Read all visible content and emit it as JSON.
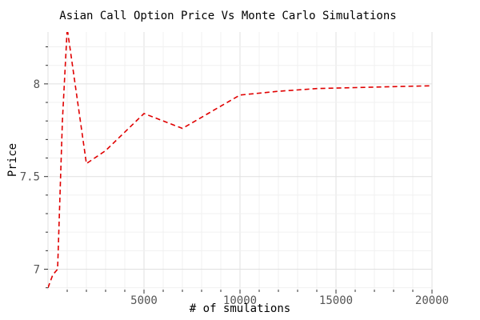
{
  "chart_data": {
    "type": "line",
    "title": "Asian Call Option Price Vs Monte Carlo Simulations",
    "xlabel": "# of smulations",
    "ylabel": "Price",
    "xlim": [
      0,
      20000
    ],
    "ylim": [
      6.89,
      8.28
    ],
    "xticks": [
      5000,
      10000,
      15000,
      20000
    ],
    "yticks": [
      7,
      7.5,
      8
    ],
    "ytick_labels": [
      "7",
      "7.5",
      "8"
    ],
    "grid": true,
    "series": [
      {
        "color": "#e00000",
        "line_style": "dashed",
        "x": [
          0,
          250,
          500,
          750,
          1000,
          2000,
          3000,
          5000,
          7000,
          10000,
          12000,
          14000,
          16000,
          18000,
          20000
        ],
        "y": [
          6.9,
          6.97,
          7.0,
          7.8,
          8.3,
          7.57,
          7.64,
          7.84,
          7.76,
          7.94,
          7.96,
          7.975,
          7.98,
          7.985,
          7.99
        ]
      }
    ]
  }
}
